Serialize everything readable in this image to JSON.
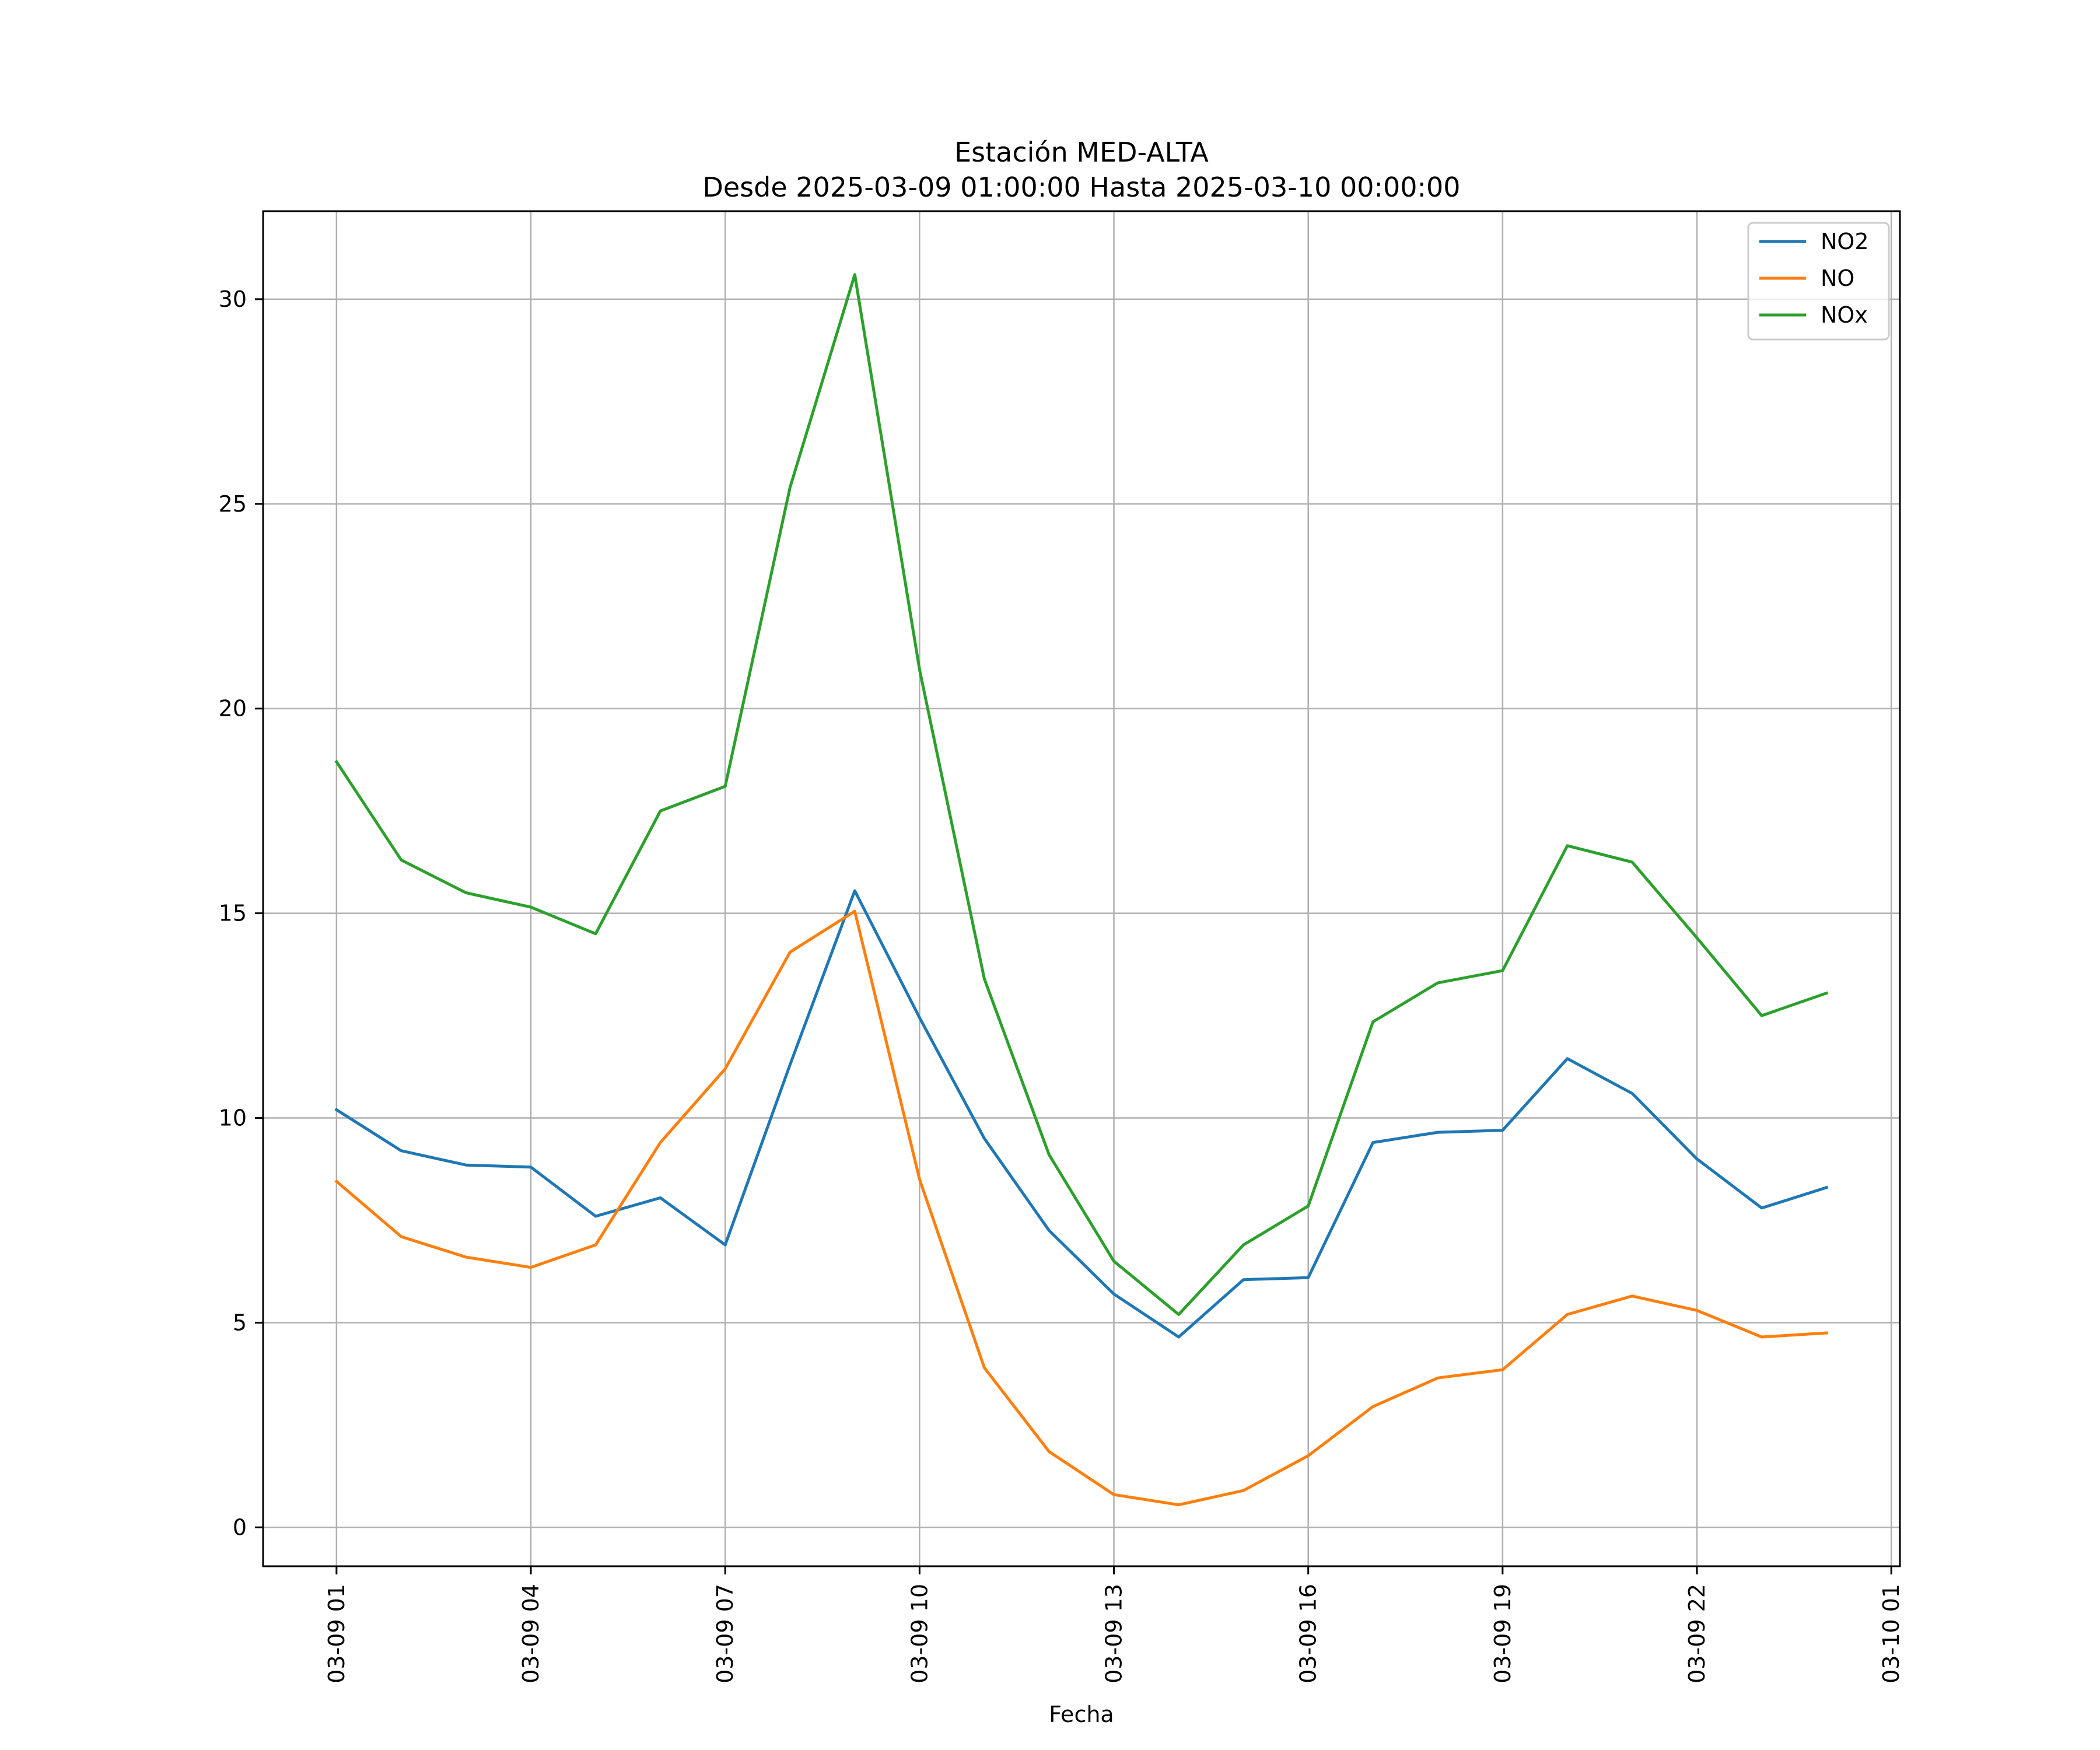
{
  "chart_data": {
    "type": "line",
    "title": "Estación MED-ALTA",
    "subtitle": "Desde 2025-03-09 01:00:00 Hasta 2025-03-10 00:00:00",
    "xlabel": "Fecha",
    "ylabel": "",
    "x": [
      "2025-03-09 01:00",
      "2025-03-09 02:00",
      "2025-03-09 03:00",
      "2025-03-09 04:00",
      "2025-03-09 05:00",
      "2025-03-09 06:00",
      "2025-03-09 07:00",
      "2025-03-09 08:00",
      "2025-03-09 09:00",
      "2025-03-09 10:00",
      "2025-03-09 11:00",
      "2025-03-09 12:00",
      "2025-03-09 13:00",
      "2025-03-09 14:00",
      "2025-03-09 15:00",
      "2025-03-09 16:00",
      "2025-03-09 17:00",
      "2025-03-09 18:00",
      "2025-03-09 19:00",
      "2025-03-09 20:00",
      "2025-03-09 21:00",
      "2025-03-09 22:00",
      "2025-03-09 23:00",
      "2025-03-10 00:00"
    ],
    "xlim": [
      "2025-03-08 23:52",
      "2025-03-10 01:08"
    ],
    "ylim": [
      -0.95,
      32.15
    ],
    "x_ticks": [
      "2025-03-09 01:00",
      "2025-03-09 04:00",
      "2025-03-09 07:00",
      "2025-03-09 10:00",
      "2025-03-09 13:00",
      "2025-03-09 16:00",
      "2025-03-09 19:00",
      "2025-03-09 22:00",
      "2025-03-10 01:00"
    ],
    "x_tick_labels": [
      "03-09 01",
      "03-09 04",
      "03-09 07",
      "03-09 10",
      "03-09 13",
      "03-09 16",
      "03-09 19",
      "03-09 22",
      "03-10 01"
    ],
    "y_ticks": [
      0,
      5,
      10,
      15,
      20,
      25,
      30
    ],
    "y_tick_labels": [
      "0",
      "5",
      "10",
      "15",
      "20",
      "25",
      "30"
    ],
    "grid": true,
    "legend_position": "top-right",
    "series": [
      {
        "name": "NO2",
        "color": "#1f77b4",
        "values": [
          10.2,
          9.2,
          8.85,
          8.8,
          7.6,
          8.05,
          6.9,
          11.3,
          15.55,
          12.45,
          9.5,
          7.25,
          5.7,
          4.65,
          6.05,
          6.1,
          9.4,
          9.65,
          9.7,
          11.45,
          10.6,
          9.0,
          7.8,
          8.3
        ]
      },
      {
        "name": "NO",
        "color": "#ff7f0e",
        "values": [
          8.45,
          7.1,
          6.6,
          6.35,
          6.9,
          9.4,
          11.2,
          14.05,
          15.05,
          8.5,
          3.9,
          1.85,
          0.8,
          0.55,
          0.9,
          1.75,
          2.95,
          3.65,
          3.85,
          5.2,
          5.65,
          5.3,
          4.65,
          4.75
        ]
      },
      {
        "name": "NOx",
        "color": "#2ca02c",
        "values": [
          18.7,
          16.3,
          15.5,
          15.15,
          14.5,
          17.5,
          18.1,
          25.4,
          30.6,
          20.95,
          13.4,
          9.1,
          6.5,
          5.2,
          6.9,
          7.85,
          12.35,
          13.3,
          13.6,
          16.65,
          16.25,
          14.4,
          12.5,
          13.05
        ]
      }
    ]
  }
}
